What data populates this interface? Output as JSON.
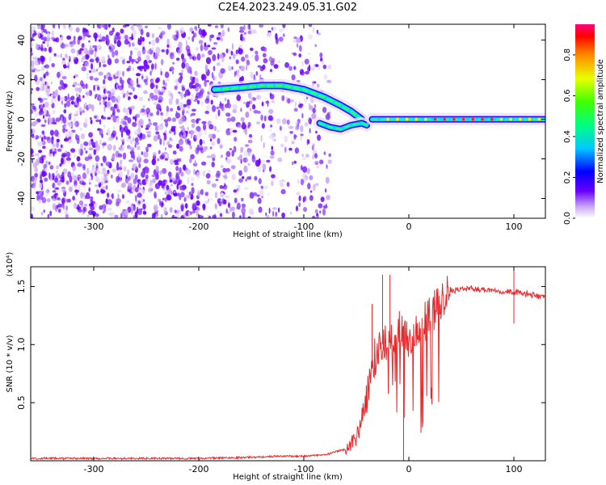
{
  "title": "C2E4.2023.249.05.31.G02",
  "chart_data": [
    {
      "type": "heatmap",
      "xlabel": "Height of straight line (km)",
      "ylabel": "Frequency (Hz)",
      "xlim": [
        -360,
        130
      ],
      "ylim": [
        -50,
        48
      ],
      "xticks": [
        -300,
        -200,
        -100,
        0,
        100
      ],
      "yticks": [
        -40,
        -20,
        0,
        20,
        40
      ],
      "colorbar": {
        "label": "Normalized spectral amplitude",
        "range": [
          0,
          0.95
        ],
        "ticks": [
          "0.0",
          "0.2",
          "0.4",
          "0.6",
          "0.8"
        ],
        "tick_values": [
          0.0,
          0.2,
          0.4,
          0.6,
          0.8
        ]
      },
      "features": [
        {
          "name": "upper-track",
          "x": [
            -185,
            -160,
            -140,
            -120,
            -100,
            -80,
            -65,
            -55,
            -45
          ],
          "y": [
            15,
            16,
            17,
            17,
            15,
            11,
            7,
            4,
            0
          ]
        },
        {
          "name": "lower-track",
          "x": [
            -85,
            -75,
            -65,
            -55,
            -45,
            -40
          ],
          "y": [
            -2,
            -4,
            -5,
            -3,
            -2,
            -3
          ]
        },
        {
          "name": "carrier-line",
          "x": [
            -35,
            0,
            50,
            100,
            130
          ],
          "y": [
            0,
            0,
            0,
            0,
            0
          ]
        }
      ],
      "noise_region": [
        -360,
        -75
      ]
    },
    {
      "type": "line",
      "xlabel": "Height of straight line (km)",
      "ylabel": "SNR (10 * v/v)",
      "yscale_note": "(x10⁴)",
      "xlim": [
        -360,
        130
      ],
      "ylim": [
        0,
        1.67
      ],
      "xticks": [
        -300,
        -200,
        -100,
        0,
        100
      ],
      "yticks": [
        "0.5",
        "1.0",
        "1.5"
      ],
      "ytick_values": [
        0.5,
        1.0,
        1.5
      ],
      "color": "#e8282a",
      "series": [
        {
          "x": [
            -360,
            -300,
            -250,
            -200,
            -150,
            -120,
            -100,
            -80,
            -60,
            -50,
            -45,
            -40,
            -35,
            -30,
            -25,
            -20,
            -15,
            -10,
            -5,
            0,
            5,
            10,
            15,
            20,
            25,
            30,
            35,
            40,
            50,
            60,
            80,
            90,
            100,
            110,
            120,
            130
          ],
          "values": [
            0.02,
            0.02,
            0.02,
            0.02,
            0.03,
            0.04,
            0.04,
            0.05,
            0.1,
            0.2,
            0.35,
            0.55,
            0.8,
            0.95,
            1.0,
            1.05,
            1.0,
            1.1,
            1.15,
            1.05,
            1.1,
            1.15,
            1.2,
            1.25,
            1.3,
            1.38,
            1.44,
            1.46,
            1.48,
            1.48,
            1.47,
            1.46,
            1.45,
            1.44,
            1.42,
            1.41
          ]
        }
      ],
      "spikes": [
        {
          "x": -35,
          "y": 1.35
        },
        {
          "x": -25,
          "y": 1.6
        },
        {
          "x": -18,
          "y": 1.6
        },
        {
          "x": -5,
          "y": 0.0
        },
        {
          "x": 100,
          "y": 1.18
        },
        {
          "x": 100,
          "y": 1.65
        }
      ]
    }
  ]
}
